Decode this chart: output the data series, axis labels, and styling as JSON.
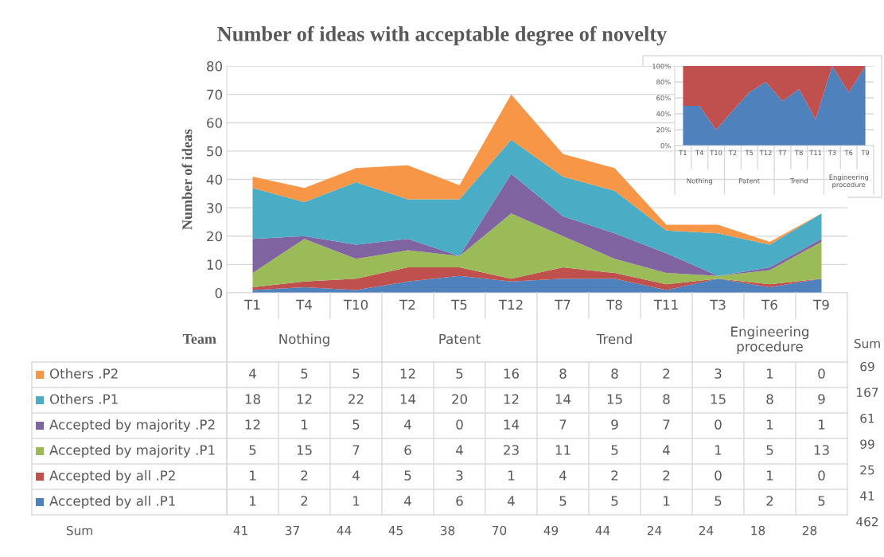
{
  "chart_data": [
    {
      "type": "area",
      "stacked": true,
      "title": "Number of ideas with acceptable degree of novelty",
      "ylabel": "Number of ideas",
      "xlabel": "Team",
      "categories": [
        "T1",
        "T4",
        "T10",
        "T2",
        "T5",
        "T12",
        "T7",
        "T8",
        "T11",
        "T3",
        "T6",
        "T9"
      ],
      "series": [
        {
          "name": "Accepted by all .P1",
          "color": "#4f81bd",
          "values": [
            1,
            2,
            1,
            4,
            6,
            4,
            5,
            5,
            1,
            5,
            2,
            5
          ]
        },
        {
          "name": "Accepted by all .P2",
          "color": "#c0504d",
          "values": [
            1,
            2,
            4,
            5,
            3,
            1,
            4,
            2,
            2,
            0,
            1,
            0
          ]
        },
        {
          "name": "Accepted by majority .P1",
          "color": "#9bbb59",
          "values": [
            5,
            15,
            7,
            6,
            4,
            23,
            11,
            5,
            4,
            1,
            5,
            13
          ]
        },
        {
          "name": "Accepted by majority .P2",
          "color": "#8064a2",
          "values": [
            12,
            1,
            5,
            4,
            0,
            14,
            7,
            9,
            7,
            0,
            1,
            1
          ]
        },
        {
          "name": "Others .P1",
          "color": "#4bacc6",
          "values": [
            18,
            12,
            22,
            14,
            20,
            12,
            14,
            15,
            8,
            15,
            8,
            9
          ]
        },
        {
          "name": "Others .P2",
          "color": "#f79646",
          "values": [
            4,
            5,
            5,
            12,
            5,
            16,
            8,
            8,
            2,
            3,
            1,
            0
          ]
        }
      ],
      "ylim": [
        0,
        80
      ],
      "yticks": [
        0,
        10,
        20,
        30,
        40,
        50,
        60,
        70,
        80
      ],
      "grid": "y",
      "legend": "bottom",
      "data_labels": true,
      "annotations": [
        "Nothing",
        "Patent",
        "Trend",
        "Engineering\nprocedure",
        "Sum",
        "41",
        "37",
        "44",
        "45",
        "38",
        "70",
        "49",
        "44",
        "24",
        "24",
        "18",
        "28",
        "Sum",
        "69",
        "167",
        "61",
        "99",
        "25",
        "41",
        "462"
      ]
    },
    {
      "type": "area",
      "stacked": true,
      "categories": [
        "T1",
        "T4",
        "T10",
        "T2",
        "T5",
        "T12",
        "T7",
        "T8",
        "T11",
        "T3",
        "T6",
        "T9"
      ],
      "series": [
        {
          "color": "#4f81bd",
          "values": [
            50,
            50,
            20,
            44,
            67,
            80,
            56,
            71,
            33,
            100,
            67,
            100
          ]
        },
        {
          "color": "#c0504d",
          "values": [
            50,
            50,
            80,
            56,
            33,
            20,
            44,
            29,
            67,
            0,
            33,
            0
          ]
        }
      ],
      "ylim": [
        0,
        100
      ],
      "yticks": [
        {
          "value": 0,
          "label": "0%"
        },
        {
          "value": 20,
          "label": "20%"
        },
        {
          "value": 40,
          "label": "40%"
        },
        {
          "value": 60,
          "label": "60%"
        },
        {
          "value": 80,
          "label": "80%"
        },
        {
          "value": 100,
          "label": "100%"
        }
      ],
      "grid": "y",
      "annotations": [
        "Nothing",
        "Patent",
        "Trend",
        "Engineering\nprocedure"
      ]
    }
  ]
}
